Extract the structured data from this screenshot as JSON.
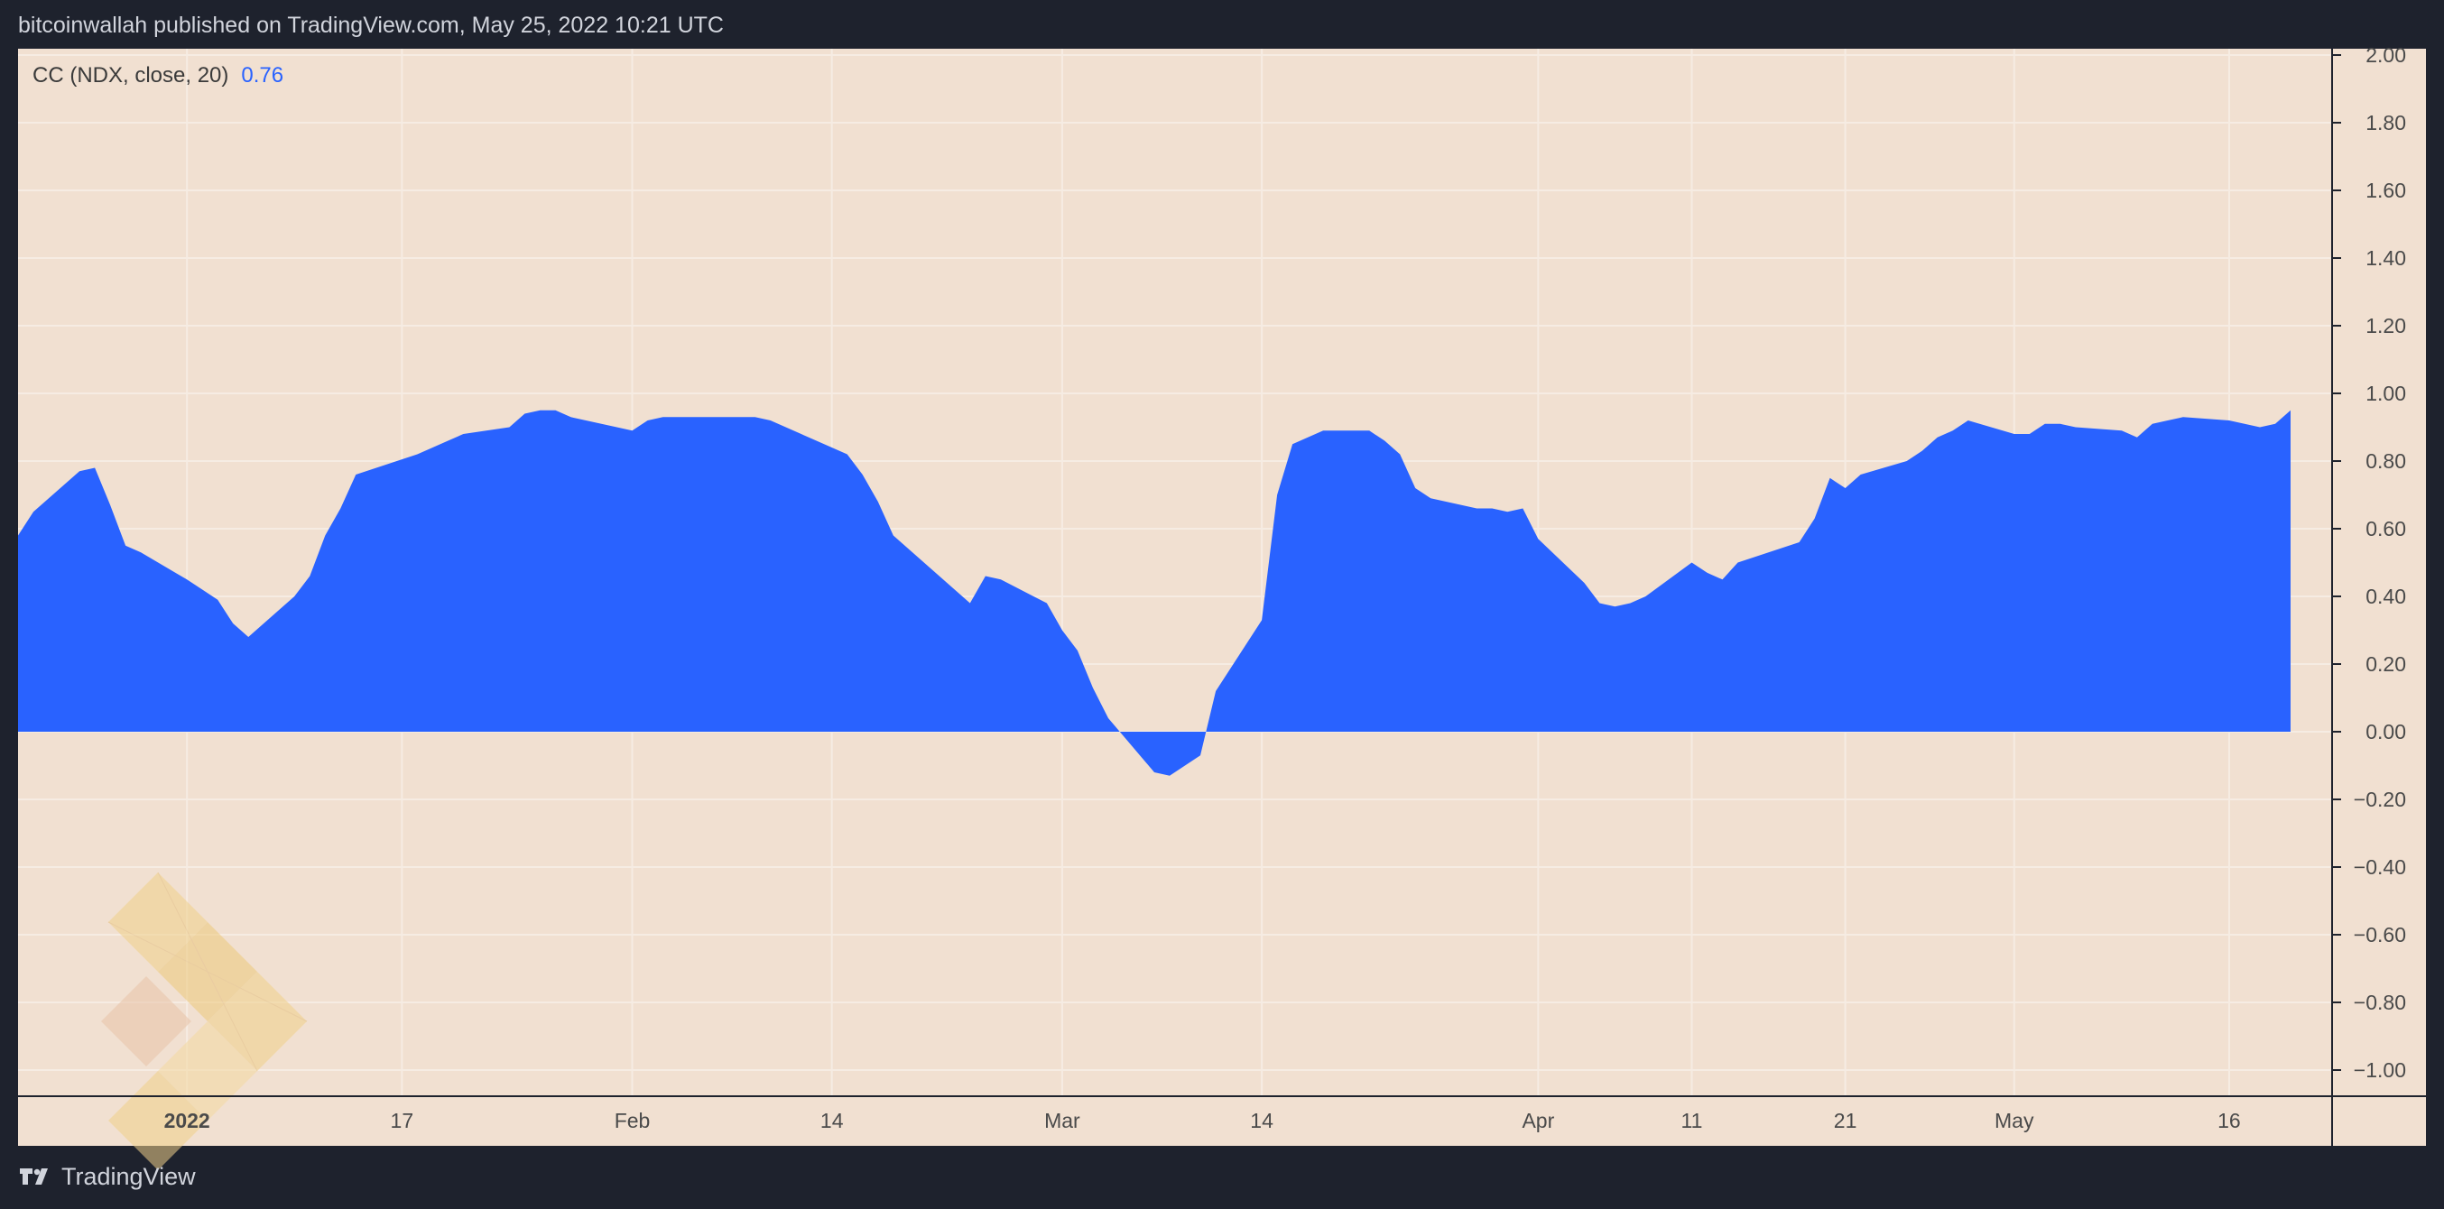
{
  "header": {
    "published_text": "bitcoinwallah published on TradingView.com, May 25, 2022 10:21 UTC"
  },
  "footer": {
    "brand": "TradingView"
  },
  "legend": {
    "label": "CC (NDX, close, 20)",
    "value": "0.76"
  },
  "colors": {
    "background": "#f1e0d1",
    "area": "#2962ff",
    "frame": "#1e222d",
    "axis_text": "#4a4a4a",
    "watermark": "#f0d08a"
  },
  "chart_data": {
    "type": "area",
    "title": "",
    "xlabel": "",
    "ylabel": "",
    "ylim": [
      -1.08,
      2.0
    ],
    "grid": true,
    "y_ticks": [
      "2.00",
      "1.80",
      "1.60",
      "1.40",
      "1.20",
      "1.00",
      "0.80",
      "0.60",
      "0.40",
      "0.20",
      "0.00",
      "−0.20",
      "−0.40",
      "−0.60",
      "−0.80",
      "−1.00"
    ],
    "y_tick_values": [
      2.0,
      1.8,
      1.6,
      1.4,
      1.2,
      1.0,
      0.8,
      0.6,
      0.4,
      0.2,
      0.0,
      -0.2,
      -0.4,
      -0.6,
      -0.8,
      -1.0
    ],
    "x_ticks": [
      {
        "label": "2022",
        "bold": true,
        "date": "2022-01-03"
      },
      {
        "label": "17",
        "date": "2022-01-17"
      },
      {
        "label": "Feb",
        "date": "2022-02-01"
      },
      {
        "label": "14",
        "date": "2022-02-14"
      },
      {
        "label": "Mar",
        "date": "2022-03-01"
      },
      {
        "label": "14",
        "date": "2022-03-14"
      },
      {
        "label": "Apr",
        "date": "2022-04-01"
      },
      {
        "label": "11",
        "date": "2022-04-11"
      },
      {
        "label": "21",
        "date": "2022-04-21"
      },
      {
        "label": "May",
        "date": "2022-05-02"
      },
      {
        "label": "16",
        "date": "2022-05-16"
      }
    ],
    "series": [
      {
        "values": [
          [
            "2021-12-23",
            0.58
          ],
          [
            "2021-12-24",
            0.65
          ],
          [
            "2021-12-27",
            0.77
          ],
          [
            "2021-12-28",
            0.78
          ],
          [
            "2021-12-29",
            0.67
          ],
          [
            "2021-12-30",
            0.55
          ],
          [
            "2021-12-31",
            0.53
          ],
          [
            "2022-01-03",
            0.45
          ],
          [
            "2022-01-04",
            0.42
          ],
          [
            "2022-01-05",
            0.39
          ],
          [
            "2022-01-06",
            0.32
          ],
          [
            "2022-01-07",
            0.28
          ],
          [
            "2022-01-10",
            0.4
          ],
          [
            "2022-01-11",
            0.46
          ],
          [
            "2022-01-12",
            0.58
          ],
          [
            "2022-01-13",
            0.66
          ],
          [
            "2022-01-14",
            0.76
          ],
          [
            "2022-01-18",
            0.82
          ],
          [
            "2022-01-19",
            0.84
          ],
          [
            "2022-01-20",
            0.86
          ],
          [
            "2022-01-21",
            0.88
          ],
          [
            "2022-01-24",
            0.9
          ],
          [
            "2022-01-25",
            0.94
          ],
          [
            "2022-01-26",
            0.95
          ],
          [
            "2022-01-27",
            0.95
          ],
          [
            "2022-01-28",
            0.93
          ],
          [
            "2022-01-31",
            0.9
          ],
          [
            "2022-02-01",
            0.89
          ],
          [
            "2022-02-02",
            0.92
          ],
          [
            "2022-02-03",
            0.93
          ],
          [
            "2022-02-04",
            0.93
          ],
          [
            "2022-02-07",
            0.93
          ],
          [
            "2022-02-08",
            0.93
          ],
          [
            "2022-02-09",
            0.93
          ],
          [
            "2022-02-10",
            0.92
          ],
          [
            "2022-02-11",
            0.9
          ],
          [
            "2022-02-14",
            0.84
          ],
          [
            "2022-02-15",
            0.82
          ],
          [
            "2022-02-16",
            0.76
          ],
          [
            "2022-02-17",
            0.68
          ],
          [
            "2022-02-18",
            0.58
          ],
          [
            "2022-02-22",
            0.42
          ],
          [
            "2022-02-23",
            0.38
          ],
          [
            "2022-02-24",
            0.46
          ],
          [
            "2022-02-25",
            0.45
          ],
          [
            "2022-02-28",
            0.38
          ],
          [
            "2022-03-01",
            0.3
          ],
          [
            "2022-03-02",
            0.24
          ],
          [
            "2022-03-03",
            0.13
          ],
          [
            "2022-03-04",
            0.04
          ],
          [
            "2022-03-07",
            -0.12
          ],
          [
            "2022-03-08",
            -0.13
          ],
          [
            "2022-03-09",
            -0.1
          ],
          [
            "2022-03-10",
            -0.07
          ],
          [
            "2022-03-11",
            0.12
          ],
          [
            "2022-03-14",
            0.33
          ],
          [
            "2022-03-15",
            0.7
          ],
          [
            "2022-03-16",
            0.85
          ],
          [
            "2022-03-17",
            0.87
          ],
          [
            "2022-03-18",
            0.89
          ],
          [
            "2022-03-21",
            0.89
          ],
          [
            "2022-03-22",
            0.86
          ],
          [
            "2022-03-23",
            0.82
          ],
          [
            "2022-03-24",
            0.72
          ],
          [
            "2022-03-25",
            0.69
          ],
          [
            "2022-03-28",
            0.66
          ],
          [
            "2022-03-29",
            0.66
          ],
          [
            "2022-03-30",
            0.65
          ],
          [
            "2022-03-31",
            0.66
          ],
          [
            "2022-04-01",
            0.57
          ],
          [
            "2022-04-04",
            0.44
          ],
          [
            "2022-04-05",
            0.38
          ],
          [
            "2022-04-06",
            0.37
          ],
          [
            "2022-04-07",
            0.38
          ],
          [
            "2022-04-08",
            0.4
          ],
          [
            "2022-04-11",
            0.5
          ],
          [
            "2022-04-12",
            0.47
          ],
          [
            "2022-04-13",
            0.45
          ],
          [
            "2022-04-14",
            0.5
          ],
          [
            "2022-04-18",
            0.56
          ],
          [
            "2022-04-19",
            0.63
          ],
          [
            "2022-04-20",
            0.75
          ],
          [
            "2022-04-21",
            0.72
          ],
          [
            "2022-04-22",
            0.76
          ],
          [
            "2022-04-25",
            0.8
          ],
          [
            "2022-04-26",
            0.83
          ],
          [
            "2022-04-27",
            0.87
          ],
          [
            "2022-04-28",
            0.89
          ],
          [
            "2022-04-29",
            0.92
          ],
          [
            "2022-05-02",
            0.88
          ],
          [
            "2022-05-03",
            0.88
          ],
          [
            "2022-05-04",
            0.91
          ],
          [
            "2022-05-05",
            0.91
          ],
          [
            "2022-05-06",
            0.9
          ],
          [
            "2022-05-09",
            0.89
          ],
          [
            "2022-05-10",
            0.87
          ],
          [
            "2022-05-11",
            0.91
          ],
          [
            "2022-05-12",
            0.92
          ],
          [
            "2022-05-13",
            0.93
          ],
          [
            "2022-05-16",
            0.92
          ],
          [
            "2022-05-17",
            0.91
          ],
          [
            "2022-05-18",
            0.9
          ],
          [
            "2022-05-19",
            0.91
          ],
          [
            "2022-05-20",
            0.95
          ]
        ]
      }
    ]
  }
}
